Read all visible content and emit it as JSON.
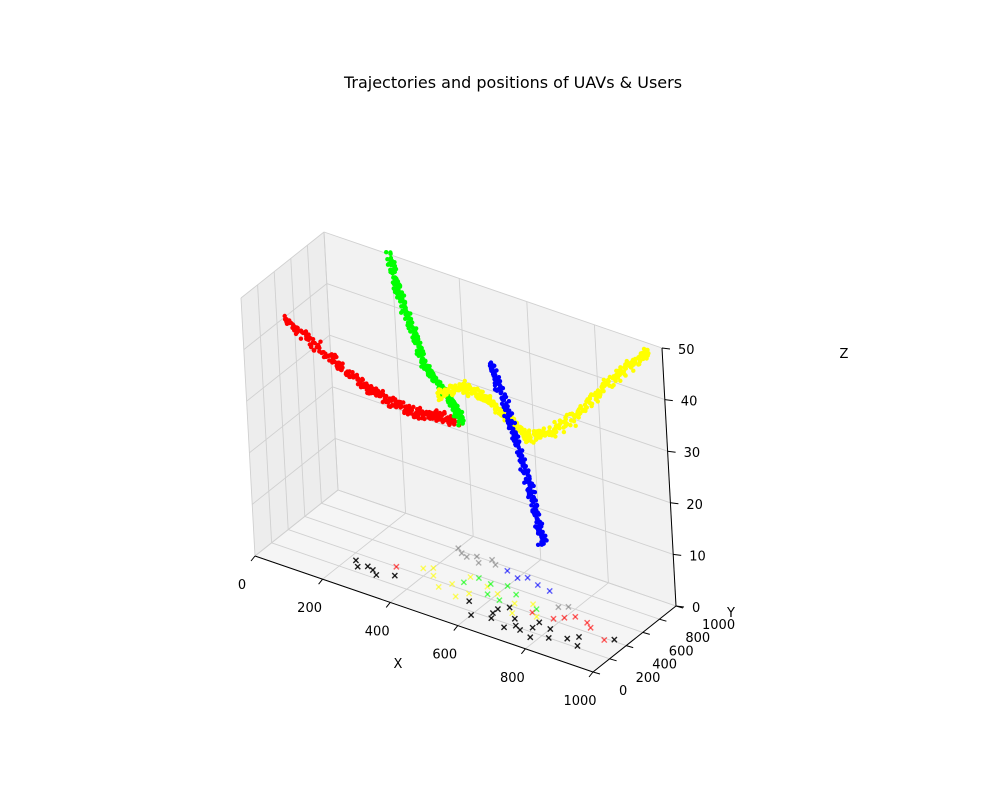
{
  "chart_data": {
    "type": "scatter3d",
    "title": "Trajectories and positions of UAVs & Users",
    "xlabel": "X",
    "ylabel": "Y",
    "zlabel": "Z",
    "xlim": [
      0,
      1000
    ],
    "ylim": [
      0,
      1000
    ],
    "zlim": [
      0,
      50
    ],
    "x_ticks": [
      0,
      200,
      400,
      600,
      800,
      1000
    ],
    "y_ticks": [
      0,
      200,
      400,
      600,
      800,
      1000
    ],
    "z_ticks": [
      0,
      10,
      20,
      30,
      40,
      50
    ],
    "grid": true,
    "colors": {
      "red": "#ff0000",
      "green": "#00ff00",
      "blue": "#0000ff",
      "yellow": "#ffff00",
      "black": "#000000",
      "gray": "#808080"
    },
    "trajectories": [
      {
        "color": "red",
        "marker": "circle",
        "waypoints": [
          [
            0,
            480,
            40
          ],
          [
            120,
            470,
            36
          ],
          [
            220,
            460,
            33
          ],
          [
            300,
            470,
            31
          ],
          [
            380,
            480,
            30
          ],
          [
            440,
            470,
            31
          ],
          [
            500,
            490,
            31
          ]
        ]
      },
      {
        "color": "green",
        "marker": "circle",
        "waypoints": [
          [
            200,
            980,
            50
          ],
          [
            240,
            900,
            45
          ],
          [
            300,
            820,
            40
          ],
          [
            360,
            700,
            36
          ],
          [
            420,
            640,
            34
          ],
          [
            470,
            600,
            32
          ],
          [
            500,
            560,
            30
          ]
        ]
      },
      {
        "color": "yellow",
        "marker": "circle",
        "waypoints": [
          [
            430,
            560,
            34
          ],
          [
            500,
            620,
            36
          ],
          [
            560,
            640,
            35
          ],
          [
            620,
            640,
            32
          ],
          [
            680,
            640,
            30
          ],
          [
            760,
            700,
            33
          ],
          [
            850,
            760,
            40
          ],
          [
            920,
            840,
            46
          ],
          [
            980,
            920,
            50
          ]
        ]
      },
      {
        "color": "blue",
        "marker": "circle",
        "waypoints": [
          [
            580,
            640,
            42
          ],
          [
            620,
            600,
            36
          ],
          [
            660,
            560,
            30
          ],
          [
            700,
            520,
            24
          ],
          [
            730,
            470,
            19
          ],
          [
            760,
            420,
            14
          ]
        ]
      }
    ],
    "users": [
      {
        "color": "black",
        "marker": "x",
        "points": [
          [
            600,
            160
          ],
          [
            650,
            200
          ],
          [
            700,
            150
          ],
          [
            740,
            180
          ],
          [
            780,
            140
          ],
          [
            820,
            200
          ],
          [
            760,
            250
          ],
          [
            700,
            280
          ],
          [
            640,
            320
          ],
          [
            560,
            300
          ],
          [
            240,
            260
          ],
          [
            260,
            300
          ],
          [
            280,
            280
          ],
          [
            300,
            240
          ],
          [
            340,
            300
          ],
          [
            220,
            320
          ],
          [
            860,
            260
          ],
          [
            880,
            320
          ],
          [
            900,
            220
          ],
          [
            960,
            420
          ],
          [
            640,
            260
          ],
          [
            720,
            210
          ],
          [
            800,
            300
          ],
          [
            660,
            380
          ],
          [
            760,
            330
          ]
        ]
      },
      {
        "color": "gray",
        "marker": "x",
        "points": [
          [
            420,
            780
          ],
          [
            460,
            800
          ],
          [
            440,
            760
          ],
          [
            480,
            740
          ],
          [
            400,
            820
          ],
          [
            520,
            780
          ],
          [
            500,
            820
          ],
          [
            760,
            560
          ],
          [
            780,
            600
          ]
        ]
      },
      {
        "color": "blue",
        "marker": "x",
        "points": [
          [
            560,
            760
          ],
          [
            620,
            760
          ],
          [
            600,
            720
          ],
          [
            660,
            720
          ],
          [
            700,
            700
          ]
        ]
      },
      {
        "color": "red",
        "marker": "x",
        "points": [
          [
            820,
            520
          ],
          [
            860,
            500
          ],
          [
            880,
            460
          ],
          [
            940,
            380
          ],
          [
            780,
            420
          ],
          [
            800,
            470
          ],
          [
            720,
            410
          ],
          [
            320,
            400
          ]
        ]
      },
      {
        "color": "yellow",
        "marker": "x",
        "points": [
          [
            380,
            480
          ],
          [
            420,
            440
          ],
          [
            480,
            420
          ],
          [
            540,
            380
          ],
          [
            460,
            340
          ],
          [
            520,
            300
          ],
          [
            600,
            480
          ],
          [
            700,
            500
          ],
          [
            660,
            440
          ],
          [
            740,
            380
          ],
          [
            560,
            520
          ],
          [
            500,
            560
          ],
          [
            400,
            520
          ],
          [
            680,
            330
          ]
        ]
      },
      {
        "color": "green",
        "marker": "x",
        "points": [
          [
            520,
            580
          ],
          [
            560,
            560
          ],
          [
            600,
            600
          ],
          [
            500,
            480
          ],
          [
            640,
            540
          ],
          [
            580,
            440
          ],
          [
            620,
            420
          ],
          [
            720,
            460
          ]
        ]
      }
    ]
  }
}
